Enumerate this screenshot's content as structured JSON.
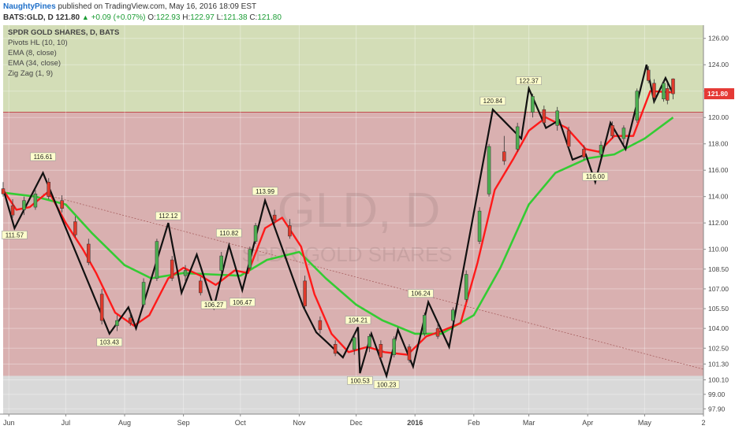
{
  "header": {
    "author": "NaughtyPines",
    "published": "published on TradingView.com, May 16, 2016 18:09 EST",
    "symbol": "BATS:GLD, D",
    "last": "121.80",
    "change": "+0.09 (+0.07%)",
    "o_label": "O:",
    "o_value": "122.93",
    "h_label": "H:",
    "h_value": "122.97",
    "l_label": "L:",
    "l_value": "121.38",
    "c_label": "C:",
    "c_value": "121.80"
  },
  "legend": {
    "title": "SPDR GOLD SHARES, D, BATS",
    "pivots": "Pivots HL (10, 10)",
    "ema8": "EMA (8, close)",
    "ema34": "EMA (34, close)",
    "zigzag": "Zig Zag (1, 9)"
  },
  "watermark": {
    "symbol": "GLD, D",
    "name": "SPDR GOLD SHARES"
  },
  "colors": {
    "upper_zone": "#d3ddb7",
    "lower_zone": "#d9b0b0",
    "bottom_zone": "#d9d9d9",
    "resistance_line": "#c0504d",
    "up_candle": "#4caf50",
    "down_candle": "#e0392b",
    "ema8": "#ff1a1a",
    "ema34": "#33cc33",
    "zigzag": "#111111",
    "pivot_label_bg": "#ffffcc",
    "last_price_label": "#e53935"
  },
  "chart_data": {
    "type": "candlestick",
    "title": "SPDR GOLD SHARES, D, BATS",
    "symbol": "GLD",
    "timeframe": "D",
    "ylim": [
      97.5,
      127
    ],
    "y_ticks": [
      "126.00",
      "124.00",
      "122.00",
      "120.00",
      "118.00",
      "116.00",
      "114.00",
      "112.00",
      "110.00",
      "108.50",
      "107.00",
      "105.50",
      "104.00",
      "102.50",
      "101.30",
      "100.10",
      "99.00",
      "97.90"
    ],
    "x_ticks": [
      {
        "date": "2015-06-01",
        "label": "Jun"
      },
      {
        "date": "2015-07-01",
        "label": "Jul"
      },
      {
        "date": "2015-08-01",
        "label": "Aug"
      },
      {
        "date": "2015-09-01",
        "label": "Sep"
      },
      {
        "date": "2015-10-01",
        "label": "Oct"
      },
      {
        "date": "2015-11-01",
        "label": "Nov"
      },
      {
        "date": "2015-12-01",
        "label": "Dec"
      },
      {
        "date": "2016-01-01",
        "label": "2016"
      },
      {
        "date": "2016-02-01",
        "label": "Feb"
      },
      {
        "date": "2016-03-01",
        "label": "Mar"
      },
      {
        "date": "2016-04-01",
        "label": "Apr"
      },
      {
        "date": "2016-05-01",
        "label": "May"
      },
      {
        "date": "2016-06-01",
        "label": "2"
      }
    ],
    "x_range": [
      "2015-05-29",
      "2016-06-01"
    ],
    "last_price": 121.8,
    "resistance_level": 120.4,
    "zone_split_low": 100.4,
    "pivots": [
      {
        "date": "2015-06-04",
        "value": 111.57,
        "label": "111.57",
        "pos": "below"
      },
      {
        "date": "2015-06-19",
        "value": 116.61,
        "label": "116.61",
        "pos": "above"
      },
      {
        "date": "2015-07-24",
        "value": 103.43,
        "label": "103.43",
        "pos": "below"
      },
      {
        "date": "2015-08-24",
        "value": 112.12,
        "label": "112.12",
        "pos": "above"
      },
      {
        "date": "2015-09-17",
        "value": 106.27,
        "label": "106.27",
        "pos": "below"
      },
      {
        "date": "2015-09-25",
        "value": 110.82,
        "label": "110.82",
        "pos": "above"
      },
      {
        "date": "2015-10-02",
        "value": 106.47,
        "label": "106.47",
        "pos": "below"
      },
      {
        "date": "2015-10-14",
        "value": 113.99,
        "label": "113.99",
        "pos": "above"
      },
      {
        "date": "2015-12-02",
        "value": 104.21,
        "label": "104.21",
        "pos": "above"
      },
      {
        "date": "2015-12-03",
        "value": 100.53,
        "label": "100.53",
        "pos": "below"
      },
      {
        "date": "2015-12-17",
        "value": 100.23,
        "label": "100.23",
        "pos": "below"
      },
      {
        "date": "2016-01-04",
        "value": 106.24,
        "label": "106.24",
        "pos": "above"
      },
      {
        "date": "2016-02-11",
        "value": 120.84,
        "label": "120.84",
        "pos": "above"
      },
      {
        "date": "2016-03-01",
        "value": 122.37,
        "label": "122.37",
        "pos": "above"
      },
      {
        "date": "2016-04-05",
        "value": 116.0,
        "label": "116.00",
        "pos": "below"
      }
    ],
    "zigzag": [
      {
        "date": "2015-05-29",
        "value": 114.6
      },
      {
        "date": "2015-06-04",
        "value": 111.6
      },
      {
        "date": "2015-06-19",
        "value": 115.8
      },
      {
        "date": "2015-07-24",
        "value": 103.6
      },
      {
        "date": "2015-08-03",
        "value": 105.6
      },
      {
        "date": "2015-08-07",
        "value": 104.0
      },
      {
        "date": "2015-08-24",
        "value": 112.0
      },
      {
        "date": "2015-08-31",
        "value": 106.7
      },
      {
        "date": "2015-09-08",
        "value": 109.6
      },
      {
        "date": "2015-09-17",
        "value": 105.6
      },
      {
        "date": "2015-09-25",
        "value": 110.3
      },
      {
        "date": "2015-10-02",
        "value": 106.9
      },
      {
        "date": "2015-10-14",
        "value": 113.7
      },
      {
        "date": "2015-11-03",
        "value": 105.7
      },
      {
        "date": "2015-11-10",
        "value": 103.7
      },
      {
        "date": "2015-11-16",
        "value": 102.9
      },
      {
        "date": "2015-11-24",
        "value": 101.8
      },
      {
        "date": "2015-12-02",
        "value": 104.1
      },
      {
        "date": "2015-12-03",
        "value": 100.6
      },
      {
        "date": "2015-12-09",
        "value": 103.6
      },
      {
        "date": "2015-12-17",
        "value": 100.4
      },
      {
        "date": "2015-12-23",
        "value": 103.9
      },
      {
        "date": "2015-12-31",
        "value": 101.1
      },
      {
        "date": "2016-01-08",
        "value": 106.0
      },
      {
        "date": "2016-01-19",
        "value": 102.6
      },
      {
        "date": "2016-02-11",
        "value": 120.6
      },
      {
        "date": "2016-02-26",
        "value": 118.4
      },
      {
        "date": "2016-03-01",
        "value": 122.2
      },
      {
        "date": "2016-03-10",
        "value": 119.2
      },
      {
        "date": "2016-03-17",
        "value": 119.8
      },
      {
        "date": "2016-03-24",
        "value": 116.8
      },
      {
        "date": "2016-03-31",
        "value": 117.2
      },
      {
        "date": "2016-04-05",
        "value": 115.1
      },
      {
        "date": "2016-04-13",
        "value": 119.6
      },
      {
        "date": "2016-04-21",
        "value": 117.6
      },
      {
        "date": "2016-05-02",
        "value": 124.0
      },
      {
        "date": "2016-05-06",
        "value": 121.2
      },
      {
        "date": "2016-05-12",
        "value": 123.0
      },
      {
        "date": "2016-05-16",
        "value": 121.8
      }
    ],
    "ema8": [
      {
        "date": "2015-05-29",
        "value": 114.5
      },
      {
        "date": "2015-06-05",
        "value": 113.0
      },
      {
        "date": "2015-06-12",
        "value": 113.2
      },
      {
        "date": "2015-06-22",
        "value": 114.4
      },
      {
        "date": "2015-07-01",
        "value": 112.0
      },
      {
        "date": "2015-07-10",
        "value": 110.0
      },
      {
        "date": "2015-07-17",
        "value": 108.2
      },
      {
        "date": "2015-07-27",
        "value": 105.2
      },
      {
        "date": "2015-08-06",
        "value": 104.2
      },
      {
        "date": "2015-08-14",
        "value": 105.0
      },
      {
        "date": "2015-08-24",
        "value": 107.8
      },
      {
        "date": "2015-09-01",
        "value": 108.6
      },
      {
        "date": "2015-09-10",
        "value": 108.0
      },
      {
        "date": "2015-09-18",
        "value": 107.3
      },
      {
        "date": "2015-09-28",
        "value": 108.4
      },
      {
        "date": "2015-10-05",
        "value": 108.2
      },
      {
        "date": "2015-10-14",
        "value": 111.6
      },
      {
        "date": "2015-10-23",
        "value": 112.4
      },
      {
        "date": "2015-11-02",
        "value": 110.2
      },
      {
        "date": "2015-11-09",
        "value": 106.6
      },
      {
        "date": "2015-11-18",
        "value": 103.6
      },
      {
        "date": "2015-11-27",
        "value": 102.2
      },
      {
        "date": "2015-12-07",
        "value": 102.6
      },
      {
        "date": "2015-12-16",
        "value": 102.2
      },
      {
        "date": "2015-12-28",
        "value": 102.0
      },
      {
        "date": "2016-01-07",
        "value": 103.4
      },
      {
        "date": "2016-01-15",
        "value": 103.8
      },
      {
        "date": "2016-01-25",
        "value": 104.4
      },
      {
        "date": "2016-02-03",
        "value": 109.0
      },
      {
        "date": "2016-02-12",
        "value": 114.5
      },
      {
        "date": "2016-02-22",
        "value": 116.9
      },
      {
        "date": "2016-03-01",
        "value": 119.0
      },
      {
        "date": "2016-03-10",
        "value": 120.0
      },
      {
        "date": "2016-03-21",
        "value": 119.2
      },
      {
        "date": "2016-03-31",
        "value": 117.6
      },
      {
        "date": "2016-04-07",
        "value": 117.4
      },
      {
        "date": "2016-04-15",
        "value": 118.6
      },
      {
        "date": "2016-04-25",
        "value": 118.6
      },
      {
        "date": "2016-05-04",
        "value": 122.0
      },
      {
        "date": "2016-05-16",
        "value": 121.9
      }
    ],
    "ema34": [
      {
        "date": "2015-05-29",
        "value": 114.3
      },
      {
        "date": "2015-06-15",
        "value": 114.0
      },
      {
        "date": "2015-07-01",
        "value": 113.4
      },
      {
        "date": "2015-07-15",
        "value": 111.2
      },
      {
        "date": "2015-08-01",
        "value": 108.8
      },
      {
        "date": "2015-08-15",
        "value": 107.8
      },
      {
        "date": "2015-09-01",
        "value": 108.2
      },
      {
        "date": "2015-09-15",
        "value": 108.1
      },
      {
        "date": "2015-10-01",
        "value": 108.0
      },
      {
        "date": "2015-10-15",
        "value": 109.2
      },
      {
        "date": "2015-11-01",
        "value": 109.8
      },
      {
        "date": "2015-11-15",
        "value": 107.8
      },
      {
        "date": "2015-12-01",
        "value": 105.8
      },
      {
        "date": "2015-12-15",
        "value": 104.6
      },
      {
        "date": "2016-01-01",
        "value": 103.6
      },
      {
        "date": "2016-01-15",
        "value": 103.6
      },
      {
        "date": "2016-02-01",
        "value": 105.0
      },
      {
        "date": "2016-02-15",
        "value": 108.6
      },
      {
        "date": "2016-03-01",
        "value": 113.4
      },
      {
        "date": "2016-03-15",
        "value": 115.8
      },
      {
        "date": "2016-04-01",
        "value": 116.9
      },
      {
        "date": "2016-04-15",
        "value": 117.2
      },
      {
        "date": "2016-05-01",
        "value": 118.4
      },
      {
        "date": "2016-05-16",
        "value": 120.0
      }
    ],
    "trendline": [
      {
        "date": "2015-06-19",
        "value": 114.2
      },
      {
        "date": "2016-06-01",
        "value": 100.9
      }
    ],
    "candles": [
      {
        "date": "2015-05-29",
        "open": 114.6,
        "high": 115.1,
        "low": 114.0,
        "close": 114.2
      },
      {
        "date": "2015-06-03",
        "open": 113.3,
        "high": 113.8,
        "low": 112.4,
        "close": 112.6
      },
      {
        "date": "2015-06-09",
        "open": 113.0,
        "high": 114.0,
        "low": 112.6,
        "close": 113.7
      },
      {
        "date": "2015-06-15",
        "open": 113.2,
        "high": 114.5,
        "low": 113.0,
        "close": 114.2
      },
      {
        "date": "2015-06-22",
        "open": 115.1,
        "high": 115.4,
        "low": 113.8,
        "close": 114.0
      },
      {
        "date": "2015-06-29",
        "open": 113.7,
        "high": 114.1,
        "low": 112.8,
        "close": 113.1
      },
      {
        "date": "2015-07-06",
        "open": 112.1,
        "high": 112.5,
        "low": 110.9,
        "close": 111.1
      },
      {
        "date": "2015-07-13",
        "open": 110.4,
        "high": 110.8,
        "low": 108.8,
        "close": 109.0
      },
      {
        "date": "2015-07-20",
        "open": 106.6,
        "high": 107.0,
        "low": 104.3,
        "close": 104.6
      },
      {
        "date": "2015-07-28",
        "open": 104.2,
        "high": 105.0,
        "low": 103.8,
        "close": 104.6
      },
      {
        "date": "2015-08-04",
        "open": 104.8,
        "high": 105.4,
        "low": 104.2,
        "close": 104.4
      },
      {
        "date": "2015-08-11",
        "open": 105.8,
        "high": 107.8,
        "low": 105.6,
        "close": 107.5
      },
      {
        "date": "2015-08-18",
        "open": 107.8,
        "high": 110.8,
        "low": 107.6,
        "close": 110.6
      },
      {
        "date": "2015-08-26",
        "open": 109.2,
        "high": 109.5,
        "low": 107.6,
        "close": 107.8
      },
      {
        "date": "2015-09-02",
        "open": 108.0,
        "high": 108.8,
        "low": 107.6,
        "close": 108.4
      },
      {
        "date": "2015-09-10",
        "open": 107.6,
        "high": 107.9,
        "low": 106.5,
        "close": 106.7
      },
      {
        "date": "2015-09-21",
        "open": 108.4,
        "high": 109.8,
        "low": 108.1,
        "close": 109.5
      },
      {
        "date": "2015-10-06",
        "open": 108.6,
        "high": 110.2,
        "low": 108.4,
        "close": 110.0
      },
      {
        "date": "2015-10-09",
        "open": 110.6,
        "high": 112.0,
        "low": 110.4,
        "close": 111.8
      },
      {
        "date": "2015-10-19",
        "open": 112.6,
        "high": 113.0,
        "low": 111.9,
        "close": 112.2
      },
      {
        "date": "2015-10-27",
        "open": 111.8,
        "high": 112.3,
        "low": 110.8,
        "close": 111.0
      },
      {
        "date": "2015-11-04",
        "open": 107.6,
        "high": 108.0,
        "low": 105.4,
        "close": 105.7
      },
      {
        "date": "2015-11-12",
        "open": 104.6,
        "high": 104.9,
        "low": 103.6,
        "close": 103.9
      },
      {
        "date": "2015-11-20",
        "open": 102.8,
        "high": 103.1,
        "low": 101.9,
        "close": 102.1
      },
      {
        "date": "2015-11-30",
        "open": 102.4,
        "high": 103.6,
        "low": 102.0,
        "close": 103.3
      },
      {
        "date": "2015-12-08",
        "open": 102.6,
        "high": 103.6,
        "low": 102.2,
        "close": 103.4
      },
      {
        "date": "2015-12-14",
        "open": 102.8,
        "high": 103.1,
        "low": 101.6,
        "close": 101.8
      },
      {
        "date": "2015-12-21",
        "open": 102.0,
        "high": 103.4,
        "low": 101.8,
        "close": 103.2
      },
      {
        "date": "2015-12-29",
        "open": 102.6,
        "high": 102.8,
        "low": 101.4,
        "close": 101.6
      },
      {
        "date": "2016-01-06",
        "open": 103.6,
        "high": 105.2,
        "low": 103.4,
        "close": 105.0
      },
      {
        "date": "2016-01-13",
        "open": 104.0,
        "high": 104.4,
        "low": 103.2,
        "close": 103.4
      },
      {
        "date": "2016-01-21",
        "open": 104.6,
        "high": 105.6,
        "low": 104.4,
        "close": 105.4
      },
      {
        "date": "2016-01-28",
        "open": 106.2,
        "high": 108.4,
        "low": 106.0,
        "close": 108.1
      },
      {
        "date": "2016-02-04",
        "open": 110.6,
        "high": 113.2,
        "low": 110.4,
        "close": 112.9
      },
      {
        "date": "2016-02-09",
        "open": 114.2,
        "high": 118.0,
        "low": 114.0,
        "close": 117.8
      },
      {
        "date": "2016-02-17",
        "open": 117.4,
        "high": 118.6,
        "low": 116.4,
        "close": 116.7
      },
      {
        "date": "2016-02-24",
        "open": 117.6,
        "high": 119.6,
        "low": 117.4,
        "close": 119.3
      },
      {
        "date": "2016-03-03",
        "open": 120.4,
        "high": 121.8,
        "low": 120.0,
        "close": 121.6
      },
      {
        "date": "2016-03-09",
        "open": 120.6,
        "high": 120.9,
        "low": 119.4,
        "close": 119.6
      },
      {
        "date": "2016-03-16",
        "open": 119.4,
        "high": 120.8,
        "low": 119.0,
        "close": 120.5
      },
      {
        "date": "2016-03-22",
        "open": 119.0,
        "high": 119.3,
        "low": 117.6,
        "close": 117.8
      },
      {
        "date": "2016-03-30",
        "open": 117.6,
        "high": 117.9,
        "low": 116.8,
        "close": 117.0
      },
      {
        "date": "2016-04-08",
        "open": 117.2,
        "high": 118.2,
        "low": 117.0,
        "close": 117.9
      },
      {
        "date": "2016-04-14",
        "open": 119.4,
        "high": 119.7,
        "low": 118.4,
        "close": 118.6
      },
      {
        "date": "2016-04-20",
        "open": 118.4,
        "high": 119.4,
        "low": 118.0,
        "close": 119.2
      },
      {
        "date": "2016-04-27",
        "open": 119.8,
        "high": 122.2,
        "low": 119.6,
        "close": 122.0
      },
      {
        "date": "2016-05-03",
        "open": 123.6,
        "high": 123.9,
        "low": 122.6,
        "close": 122.8
      },
      {
        "date": "2016-05-06",
        "open": 122.6,
        "high": 122.9,
        "low": 121.2,
        "close": 121.5
      },
      {
        "date": "2016-05-11",
        "open": 121.4,
        "high": 122.8,
        "low": 121.2,
        "close": 122.6
      },
      {
        "date": "2016-05-13",
        "open": 122.2,
        "high": 122.6,
        "low": 121.0,
        "close": 121.3
      },
      {
        "date": "2016-05-16",
        "open": 122.93,
        "high": 122.97,
        "low": 121.38,
        "close": 121.8
      }
    ]
  }
}
